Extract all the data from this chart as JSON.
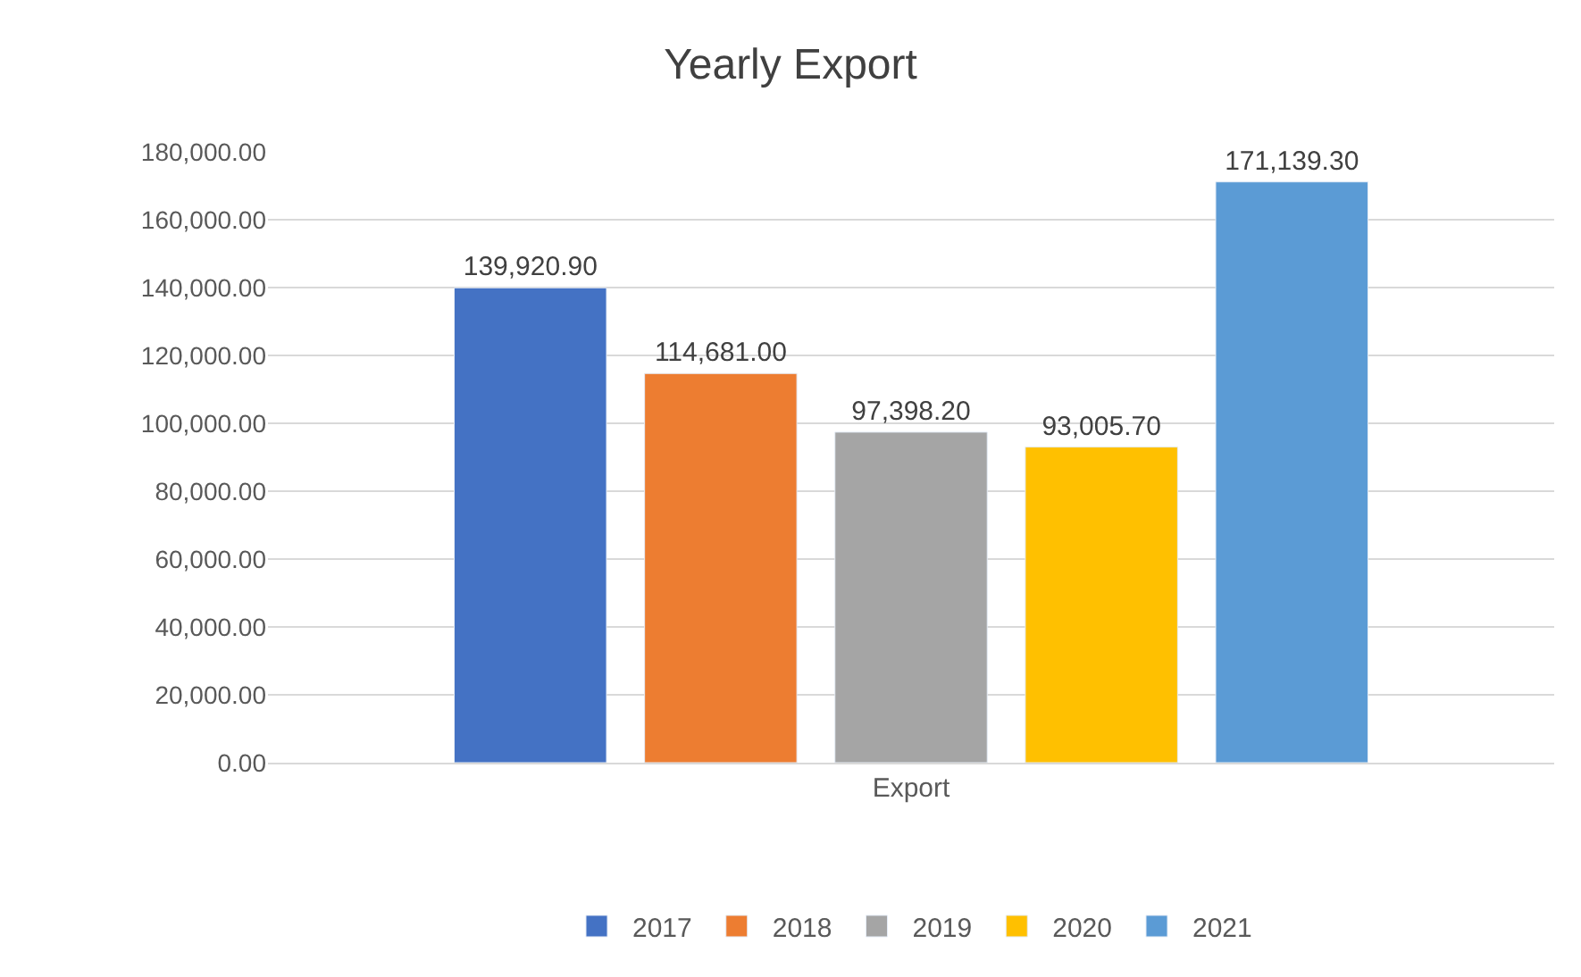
{
  "chart_data": {
    "type": "bar",
    "title": "Yearly Export",
    "categories": [
      "Export"
    ],
    "series": [
      {
        "name": "2017",
        "color": "#4472c4",
        "values": [
          139920.9
        ],
        "value_labels": [
          "139,920.90"
        ]
      },
      {
        "name": "2018",
        "color": "#ed7d31",
        "values": [
          114681.0
        ],
        "value_labels": [
          "114,681.00"
        ]
      },
      {
        "name": "2019",
        "color": "#a5a5a5",
        "values": [
          97398.2
        ],
        "value_labels": [
          "97,398.20"
        ]
      },
      {
        "name": "2020",
        "color": "#ffc000",
        "values": [
          93005.7
        ],
        "value_labels": [
          "93,005.70"
        ]
      },
      {
        "name": "2021",
        "color": "#5b9bd5",
        "values": [
          171139.3
        ],
        "value_labels": [
          "171,139.30"
        ]
      }
    ],
    "ylim": [
      0,
      180000
    ],
    "yticks": [
      {
        "value": 0,
        "label": "0.00"
      },
      {
        "value": 20000,
        "label": "20,000.00"
      },
      {
        "value": 40000,
        "label": "40,000.00"
      },
      {
        "value": 60000,
        "label": "60,000.00"
      },
      {
        "value": 80000,
        "label": "80,000.00"
      },
      {
        "value": 100000,
        "label": "100,000.00"
      },
      {
        "value": 120000,
        "label": "120,000.00"
      },
      {
        "value": 140000,
        "label": "140,000.00"
      },
      {
        "value": 160000,
        "label": "160,000.00"
      },
      {
        "value": 180000,
        "label": "180,000.00"
      }
    ],
    "grid": "y",
    "legend": "bottom"
  }
}
